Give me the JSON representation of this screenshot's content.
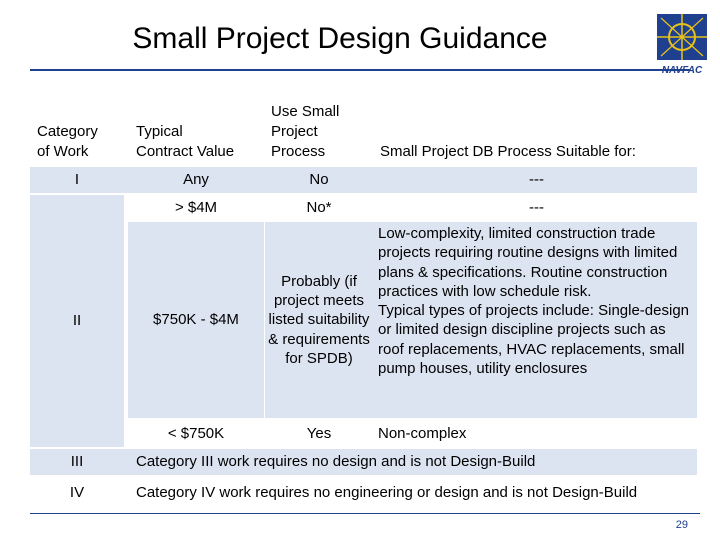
{
  "slide": {
    "title": "Small Project Design Guidance",
    "page_number": "29",
    "logo_text": "NAVFAC",
    "icons": [
      "navfac-logo-icon"
    ]
  },
  "table": {
    "headers": {
      "category_l1": "Category",
      "category_l2": "of Work",
      "value_l1": "Typical",
      "value_l2": "Contract Value",
      "process_l1": "Use Small",
      "process_l2": "Project",
      "process_l3": "Process",
      "suitable": "Small Project DB Process Suitable for:"
    },
    "cat_I": "I",
    "cat_II": "II",
    "cat_III": "III",
    "cat_IV": "IV",
    "row1": {
      "value": "Any",
      "process": "No",
      "suitable": "---"
    },
    "row2": {
      "value": "> $4M",
      "process": "No*",
      "suitable": "---"
    },
    "row3": {
      "value": "$750K - $4M",
      "process": "Probably (if project meets listed suitability & requirements for SPDB)",
      "suitable": "Low-complexity, limited construction trade projects requiring routine designs with limited plans & specifications.  Routine construction practices with low schedule risk.\nTypical types of projects include: Single-design or limited design discipline projects such as roof replacements, HVAC replacements, small pump houses, utility enclosures"
    },
    "row4": {
      "value": "< $750K",
      "process": "Yes",
      "suitable": "Non-complex"
    },
    "row_III": "Category III work requires no design and is not Design-Build",
    "row_IV": "Category IV work requires no engineering or design and is not Design-Build"
  },
  "colors": {
    "accent": "#1f3f8f",
    "band": "#dde4f1",
    "logo_yellow": "#e8c21a"
  }
}
